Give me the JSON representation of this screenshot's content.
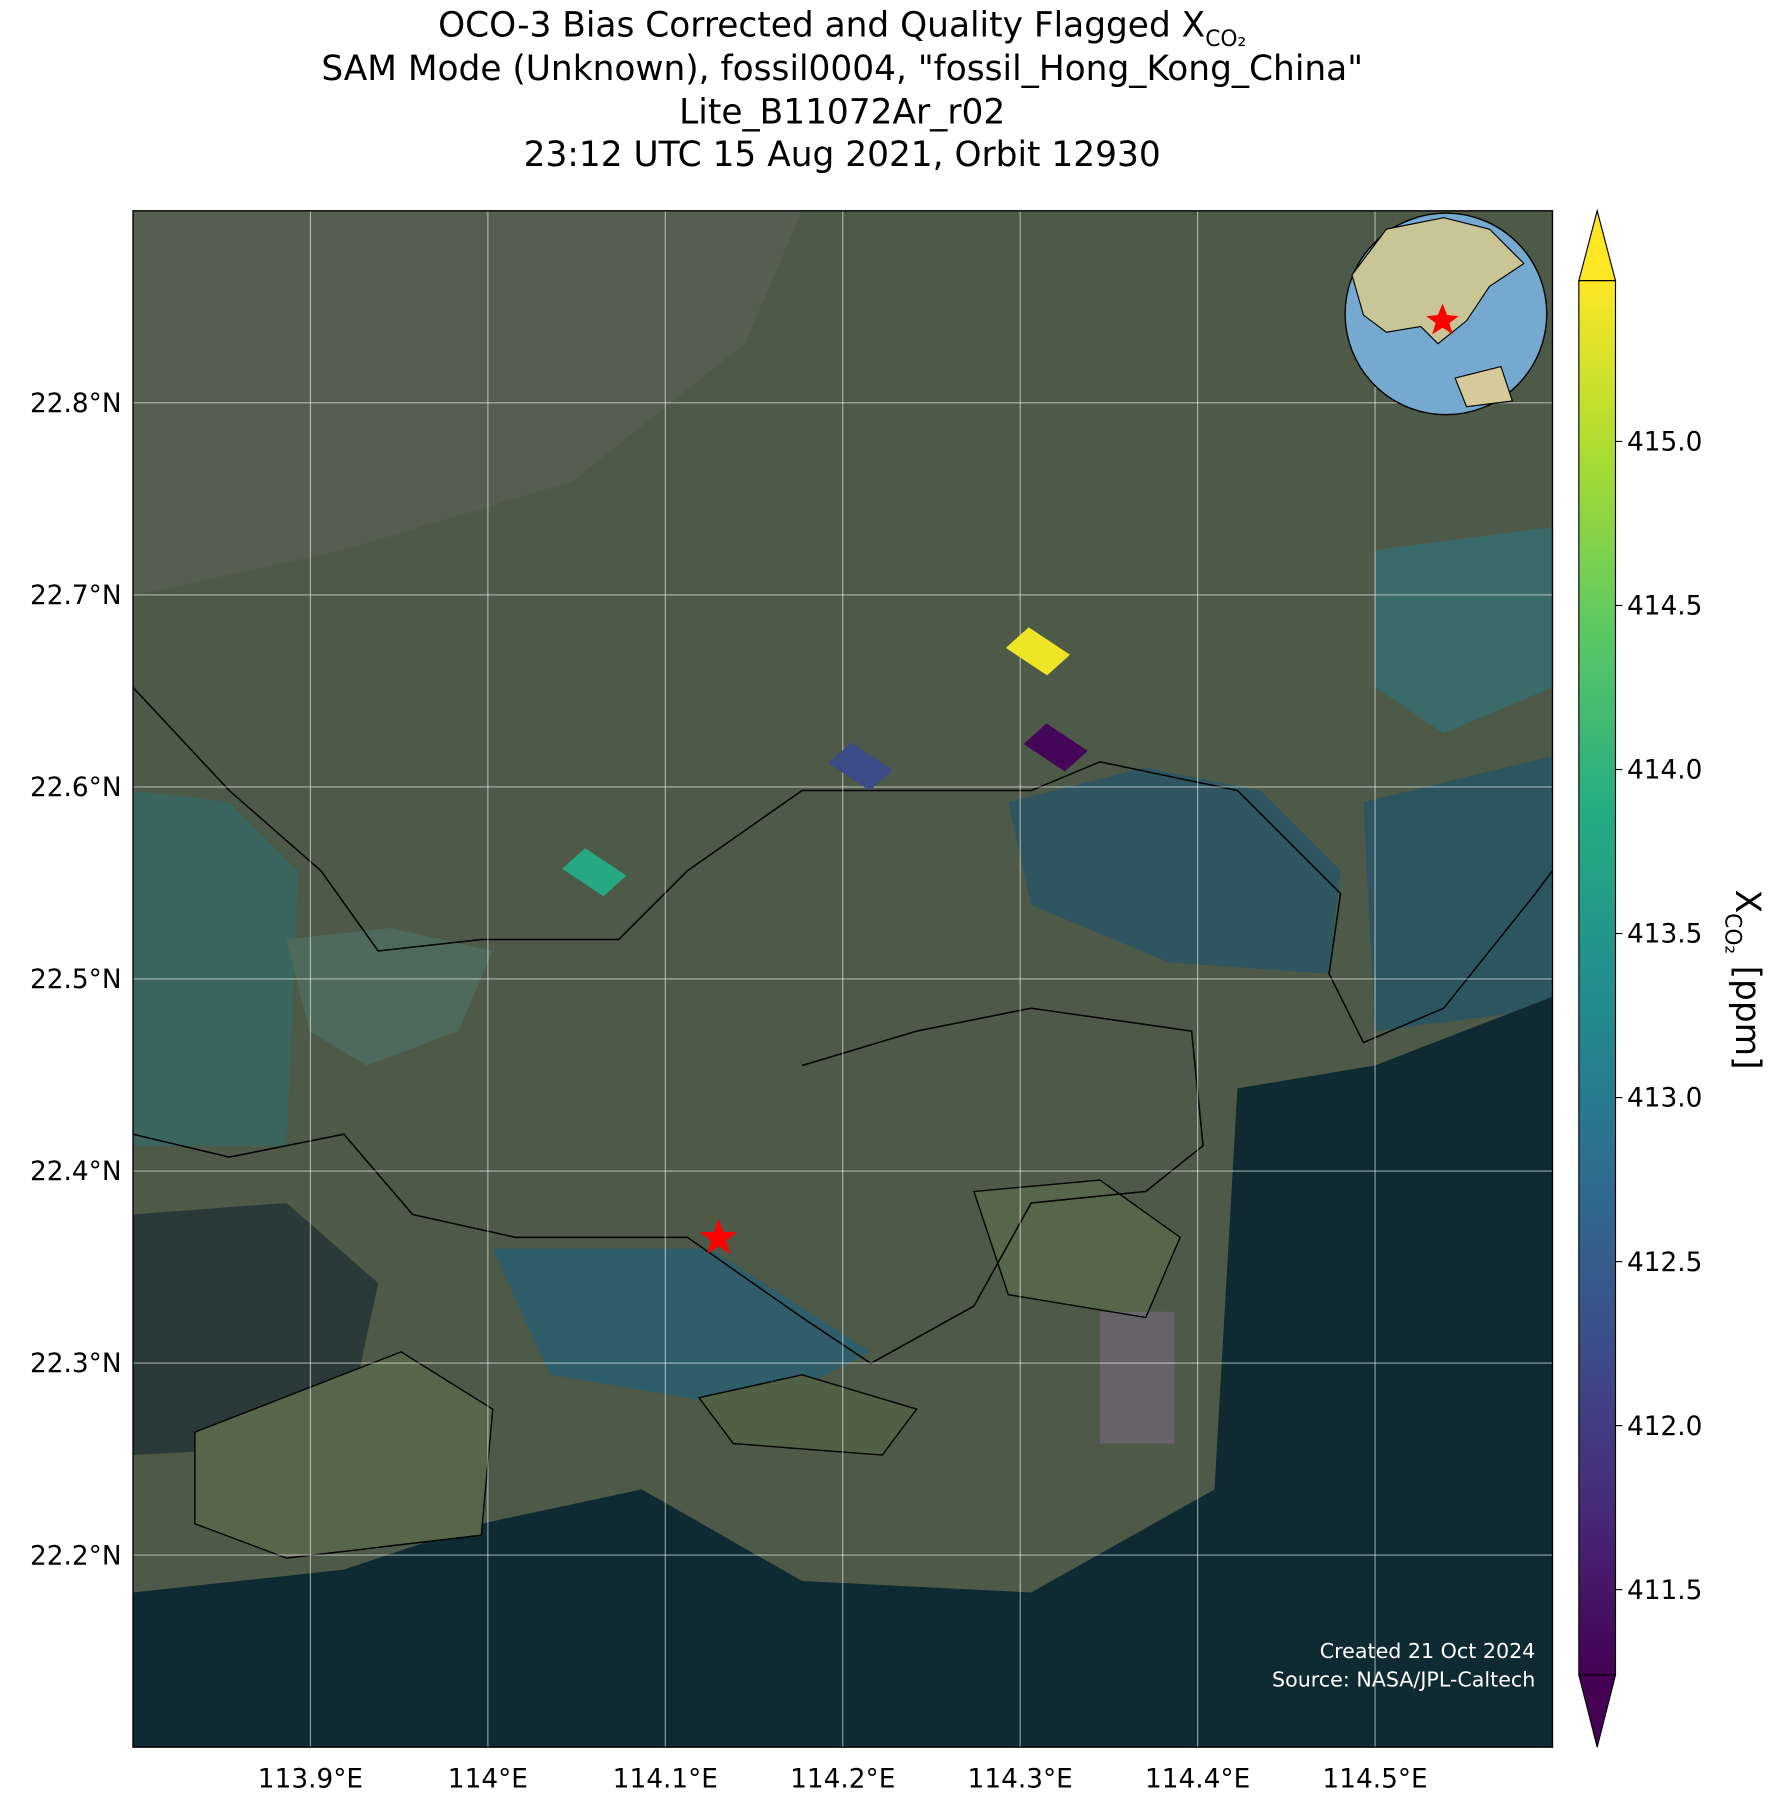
{
  "chart_data": {
    "type": "map",
    "title_lines": [
      "OCO-3 Bias Corrected and Quality Flagged X",
      "SAM Mode (Unknown), fossil0004, \"fossil_Hong_Kong_China\"",
      "Lite_B11072Ar_r02",
      "23:12 UTC 15 Aug 2021, Orbit 12930"
    ],
    "title_subscript": "CO₂",
    "xlim": [
      113.8,
      114.6
    ],
    "ylim": [
      22.1,
      22.9
    ],
    "xticks": [
      {
        "value": 113.9,
        "label": "113.9°E"
      },
      {
        "value": 114,
        "label": "114°E"
      },
      {
        "value": 114.1,
        "label": "114.1°E"
      },
      {
        "value": 114.2,
        "label": "114.2°E"
      },
      {
        "value": 114.3,
        "label": "114.3°E"
      },
      {
        "value": 114.4,
        "label": "114.4°E"
      },
      {
        "value": 114.5,
        "label": "114.5°E"
      }
    ],
    "yticks": [
      {
        "value": 22.2,
        "label": "22.2°N"
      },
      {
        "value": 22.3,
        "label": "22.3°N"
      },
      {
        "value": 22.4,
        "label": "22.4°N"
      },
      {
        "value": 22.5,
        "label": "22.5°N"
      },
      {
        "value": 22.6,
        "label": "22.6°N"
      },
      {
        "value": 22.7,
        "label": "22.7°N"
      },
      {
        "value": 22.8,
        "label": "22.8°N"
      }
    ],
    "grid": true,
    "soundings": {
      "lon": [
        114.31,
        114.32,
        114.21,
        114.06
      ],
      "lat": [
        22.67,
        22.62,
        22.61,
        22.555
      ],
      "xco2": [
        415.4,
        411.3,
        412.2,
        413.8
      ]
    },
    "target": {
      "lon": 114.13,
      "lat": 22.365
    },
    "clim": [
      411.24,
      415.49
    ],
    "colorbar_ticks": [
      {
        "value": 411.5,
        "label": "411.5"
      },
      {
        "value": 412,
        "label": "412.0"
      },
      {
        "value": 412.5,
        "label": "412.5"
      },
      {
        "value": 413,
        "label": "413.0"
      },
      {
        "value": 413.5,
        "label": "413.5"
      },
      {
        "value": 414,
        "label": "414.0"
      },
      {
        "value": 414.5,
        "label": "414.5"
      },
      {
        "value": 415,
        "label": "415.0"
      }
    ],
    "colorbar_label": "X",
    "colorbar_label_subscript": "CO₂",
    "colorbar_label_unit": "[ppm]",
    "credits": [
      "Created 21 Oct 2024",
      "Source: NASA/JPL-Caltech"
    ]
  }
}
